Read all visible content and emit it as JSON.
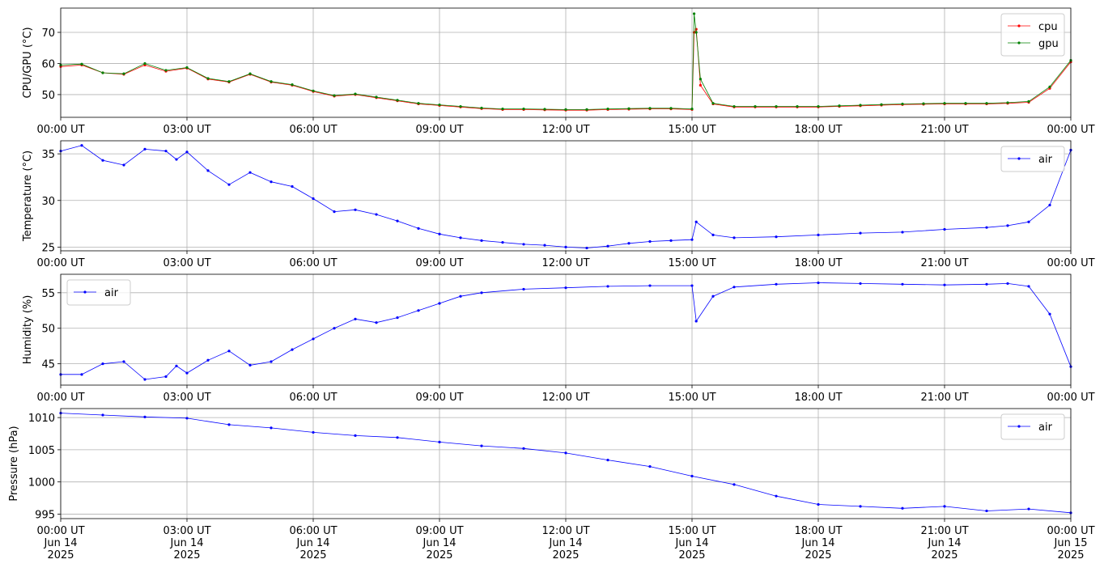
{
  "chart_data": [
    {
      "type": "line",
      "ylabel": "CPU/GPU (°C)",
      "legend": "upper right",
      "grid": true,
      "xlim": [
        0,
        24
      ],
      "ylim": [
        42.7,
        77.8
      ],
      "yticks": [
        50,
        60,
        70
      ],
      "xticks": [
        {
          "value": 0,
          "label": "00:00 UT"
        },
        {
          "value": 3,
          "label": "03:00 UT"
        },
        {
          "value": 6,
          "label": "06:00 UT"
        },
        {
          "value": 9,
          "label": "09:00 UT"
        },
        {
          "value": 12,
          "label": "12:00 UT"
        },
        {
          "value": 15,
          "label": "15:00 UT"
        },
        {
          "value": 18,
          "label": "18:00 UT"
        },
        {
          "value": 21,
          "label": "21:00 UT"
        },
        {
          "value": 24,
          "label": "00:00 UT"
        }
      ],
      "x": [
        0,
        0.5,
        1,
        1.5,
        2,
        2.5,
        3,
        3.5,
        4,
        4.5,
        5,
        5.5,
        6,
        6.5,
        7,
        7.5,
        8,
        8.5,
        9,
        9.5,
        10,
        10.5,
        11,
        11.5,
        12,
        12.5,
        13,
        13.5,
        14,
        14.5,
        15,
        15.05,
        15.1,
        15.2,
        15.5,
        16,
        16.5,
        17,
        17.5,
        18,
        18.5,
        19,
        19.5,
        20,
        20.5,
        21,
        21.5,
        22,
        22.5,
        23,
        23.5,
        24
      ],
      "series": [
        {
          "name": "cpu",
          "color": "#ff0000",
          "values": [
            59,
            59.5,
            57,
            56.5,
            59.5,
            57.5,
            58.5,
            55,
            54,
            56.5,
            54,
            53,
            51,
            49.5,
            50,
            49,
            48,
            47,
            46.5,
            46,
            45.5,
            45.2,
            45.2,
            45.1,
            45,
            45,
            45.2,
            45.3,
            45.4,
            45.4,
            45.2,
            70,
            71,
            53,
            47,
            46,
            46,
            46,
            46,
            46,
            46.2,
            46.4,
            46.6,
            46.8,
            46.9,
            47,
            47,
            47,
            47.2,
            47.5,
            52,
            60.5
          ]
        },
        {
          "name": "gpu",
          "color": "#008000",
          "values": [
            59.5,
            59.8,
            57,
            56.7,
            60,
            57.8,
            58.7,
            55.2,
            54.2,
            56.7,
            54.2,
            53.2,
            51.2,
            49.7,
            50.2,
            49.2,
            48.2,
            47.2,
            46.7,
            46.2,
            45.7,
            45.4,
            45.4,
            45.3,
            45.2,
            45.2,
            45.4,
            45.5,
            45.6,
            45.6,
            45.4,
            76,
            70,
            55,
            47.2,
            46.2,
            46.2,
            46.2,
            46.2,
            46.2,
            46.4,
            46.6,
            46.8,
            47,
            47.1,
            47.2,
            47.2,
            47.2,
            47.4,
            47.8,
            52.5,
            61
          ]
        }
      ]
    },
    {
      "type": "line",
      "ylabel": "Temperature (°C)",
      "legend": "upper right",
      "grid": true,
      "xlim": [
        0,
        24
      ],
      "ylim": [
        24.6,
        36.4
      ],
      "yticks": [
        25,
        30,
        35
      ],
      "xticks": [
        {
          "value": 0,
          "label": "00:00 UT"
        },
        {
          "value": 3,
          "label": "03:00 UT"
        },
        {
          "value": 6,
          "label": "06:00 UT"
        },
        {
          "value": 9,
          "label": "09:00 UT"
        },
        {
          "value": 12,
          "label": "12:00 UT"
        },
        {
          "value": 15,
          "label": "15:00 UT"
        },
        {
          "value": 18,
          "label": "18:00 UT"
        },
        {
          "value": 21,
          "label": "21:00 UT"
        },
        {
          "value": 24,
          "label": "00:00 UT"
        }
      ],
      "x": [
        0,
        0.5,
        1,
        1.5,
        2,
        2.5,
        2.75,
        3,
        3.5,
        4,
        4.5,
        5,
        5.5,
        6,
        6.5,
        7,
        7.5,
        8,
        8.5,
        9,
        9.5,
        10,
        10.5,
        11,
        11.5,
        12,
        12.5,
        13,
        13.5,
        14,
        14.5,
        15,
        15.1,
        15.5,
        16,
        17,
        18,
        19,
        20,
        21,
        22,
        22.5,
        23,
        23.5,
        24
      ],
      "series": [
        {
          "name": "air",
          "color": "#0000ff",
          "values": [
            35.3,
            35.9,
            34.3,
            33.8,
            35.5,
            35.3,
            34.4,
            35.2,
            33.2,
            31.7,
            33,
            32,
            31.5,
            30.2,
            28.8,
            29,
            28.5,
            27.8,
            27,
            26.4,
            26,
            25.7,
            25.5,
            25.3,
            25.2,
            25,
            24.9,
            25.1,
            25.4,
            25.6,
            25.7,
            25.8,
            27.7,
            26.3,
            26,
            26.1,
            26.3,
            26.5,
            26.6,
            26.9,
            27.1,
            27.3,
            27.7,
            29.5,
            35.4
          ]
        }
      ]
    },
    {
      "type": "line",
      "ylabel": "Humidity (%)",
      "legend": "upper left",
      "grid": true,
      "xlim": [
        0,
        24
      ],
      "ylim": [
        42.0,
        57.6
      ],
      "yticks": [
        45,
        50,
        55
      ],
      "xticks": [
        {
          "value": 0,
          "label": "00:00 UT"
        },
        {
          "value": 3,
          "label": "03:00 UT"
        },
        {
          "value": 6,
          "label": "06:00 UT"
        },
        {
          "value": 9,
          "label": "09:00 UT"
        },
        {
          "value": 12,
          "label": "12:00 UT"
        },
        {
          "value": 15,
          "label": "15:00 UT"
        },
        {
          "value": 18,
          "label": "18:00 UT"
        },
        {
          "value": 21,
          "label": "21:00 UT"
        },
        {
          "value": 24,
          "label": "00:00 UT"
        }
      ],
      "x": [
        0,
        0.5,
        1,
        1.5,
        2,
        2.5,
        2.75,
        3,
        3.5,
        4,
        4.5,
        5,
        5.5,
        6,
        6.5,
        7,
        7.5,
        8,
        8.5,
        9,
        9.5,
        10,
        11,
        12,
        13,
        14,
        15,
        15.1,
        15.5,
        16,
        17,
        18,
        19,
        20,
        21,
        22,
        22.5,
        23,
        23.5,
        24
      ],
      "series": [
        {
          "name": "air",
          "color": "#0000ff",
          "values": [
            43.5,
            43.5,
            45,
            45.3,
            42.8,
            43.2,
            44.7,
            43.7,
            45.5,
            46.8,
            44.8,
            45.3,
            47,
            48.5,
            50,
            51.3,
            50.8,
            51.5,
            52.5,
            53.5,
            54.5,
            55,
            55.5,
            55.7,
            55.9,
            56,
            56,
            51,
            54.5,
            55.8,
            56.2,
            56.4,
            56.3,
            56.2,
            56.1,
            56.2,
            56.3,
            55.9,
            52,
            44.6
          ]
        }
      ]
    },
    {
      "type": "line",
      "ylabel": "Pressure (hPa)",
      "legend": "upper right",
      "grid": true,
      "xlim": [
        0,
        24
      ],
      "ylim": [
        994.3,
        1011.4
      ],
      "yticks": [
        995,
        1000,
        1005,
        1010
      ],
      "xticks": [
        {
          "value": 0,
          "label": "00:00 UT\nJun 14\n2025"
        },
        {
          "value": 3,
          "label": "03:00 UT\nJun 14\n2025"
        },
        {
          "value": 6,
          "label": "06:00 UT\nJun 14\n2025"
        },
        {
          "value": 9,
          "label": "09:00 UT\nJun 14\n2025"
        },
        {
          "value": 12,
          "label": "12:00 UT\nJun 14\n2025"
        },
        {
          "value": 15,
          "label": "15:00 UT\nJun 14\n2025"
        },
        {
          "value": 18,
          "label": "18:00 UT\nJun 14\n2025"
        },
        {
          "value": 21,
          "label": "21:00 UT\nJun 14\n2025"
        },
        {
          "value": 24,
          "label": "00:00 UT\nJun 15\n2025"
        }
      ],
      "x": [
        0,
        1,
        2,
        3,
        4,
        5,
        6,
        7,
        8,
        9,
        10,
        11,
        12,
        13,
        14,
        15,
        16,
        17,
        18,
        19,
        20,
        21,
        22,
        23,
        24
      ],
      "series": [
        {
          "name": "air",
          "color": "#0000ff",
          "values": [
            1010.7,
            1010.4,
            1010.1,
            1009.9,
            1008.9,
            1008.4,
            1007.7,
            1007.2,
            1006.9,
            1006.2,
            1005.6,
            1005.2,
            1004.5,
            1003.4,
            1002.4,
            1000.9,
            999.6,
            997.8,
            996.5,
            996.2,
            995.9,
            996.2,
            995.5,
            995.8,
            995.2
          ]
        }
      ]
    }
  ]
}
